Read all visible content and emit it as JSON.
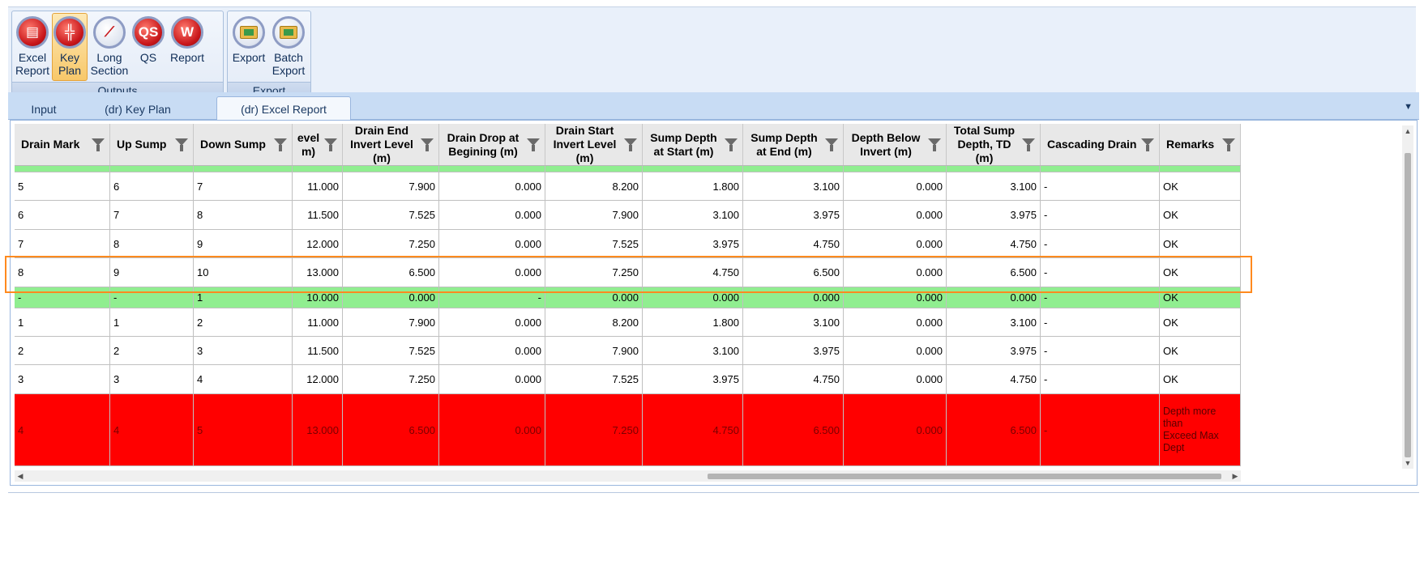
{
  "ribbon": {
    "groups": [
      {
        "label": "Outputs"
      },
      {
        "label": "Export"
      }
    ],
    "buttons": {
      "excel_report": {
        "line1": "Excel",
        "line2": "Report",
        "icon": "excel-report-icon"
      },
      "key_plan": {
        "line1": "Key",
        "line2": "Plan",
        "icon": "key-plan-icon"
      },
      "long_section": {
        "line1": "Long",
        "line2": "Section",
        "icon": "long-section-icon"
      },
      "qs": {
        "line1": "QS",
        "icon_text": "QS",
        "icon": "qs-icon"
      },
      "report": {
        "line1": "Report",
        "icon_text": "W",
        "icon": "word-report-icon"
      },
      "export": {
        "line1": "Export",
        "icon": "export-folder-icon"
      },
      "batch_export": {
        "line1": "Batch",
        "line2": "Export",
        "icon": "batch-export-folder-icon"
      }
    }
  },
  "tabs": [
    {
      "label": "Input"
    },
    {
      "label": "(dr) Key Plan"
    },
    {
      "label": "(dr) Excel Report",
      "active": true
    }
  ],
  "table": {
    "headers": [
      "Drain Mark",
      "Up Sump",
      "Down Sump",
      "evel\nm)",
      "Drain End\nInvert Level\n(m)",
      "Drain Drop at\nBegining (m)",
      "Drain Start\nInvert Level\n(m)",
      "Sump Depth\nat Start (m)",
      "Sump Depth\nat End (m)",
      "Depth Below\nInvert (m)",
      "Total Sump\nDepth, TD\n(m)",
      "Cascading Drain",
      "Remarks"
    ],
    "rows": [
      {
        "style": "green",
        "cells": [
          "",
          "",
          "",
          "",
          "",
          "",
          "",
          "",
          "",
          "",
          "",
          "",
          ""
        ]
      },
      {
        "style": "normal",
        "cells": [
          "5",
          "6",
          "7",
          "11.000",
          "7.900",
          "0.000",
          "8.200",
          "1.800",
          "3.100",
          "0.000",
          "3.100",
          "-",
          "OK"
        ]
      },
      {
        "style": "normal",
        "cells": [
          "6",
          "7",
          "8",
          "11.500",
          "7.525",
          "0.000",
          "7.900",
          "3.100",
          "3.975",
          "0.000",
          "3.975",
          "-",
          "OK"
        ]
      },
      {
        "style": "normal",
        "cells": [
          "7",
          "8",
          "9",
          "12.000",
          "7.250",
          "0.000",
          "7.525",
          "3.975",
          "4.750",
          "0.000",
          "4.750",
          "-",
          "OK"
        ]
      },
      {
        "style": "normal",
        "cells": [
          "8",
          "9",
          "10",
          "13.000",
          "6.500",
          "0.000",
          "7.250",
          "4.750",
          "6.500",
          "0.000",
          "6.500",
          "-",
          "OK"
        ]
      },
      {
        "style": "green",
        "cells": [
          "-",
          "-",
          "1",
          "10.000",
          "0.000",
          "-",
          "0.000",
          "0.000",
          "0.000",
          "0.000",
          "0.000",
          "-",
          "OK"
        ]
      },
      {
        "style": "normal",
        "cells": [
          "1",
          "1",
          "2",
          "11.000",
          "7.900",
          "0.000",
          "8.200",
          "1.800",
          "3.100",
          "0.000",
          "3.100",
          "-",
          "OK"
        ]
      },
      {
        "style": "normal",
        "cells": [
          "2",
          "2",
          "3",
          "11.500",
          "7.525",
          "0.000",
          "7.900",
          "3.100",
          "3.975",
          "0.000",
          "3.975",
          "-",
          "OK"
        ]
      },
      {
        "style": "normal",
        "cells": [
          "3",
          "3",
          "4",
          "12.000",
          "7.250",
          "0.000",
          "7.525",
          "3.975",
          "4.750",
          "0.000",
          "4.750",
          "-",
          "OK"
        ]
      },
      {
        "style": "red",
        "cells": [
          "4",
          "4",
          "5",
          "13.000",
          "6.500",
          "0.000",
          "7.250",
          "4.750",
          "6.500",
          "0.000",
          "6.500",
          "-",
          "Depth more than\nExceed Max Dept"
        ]
      }
    ]
  },
  "colors": {
    "ok_row": "#90ee90",
    "error_row": "#ff0000",
    "highlight": "#ff8a1e",
    "ribbon_active": "#f8c86a"
  }
}
